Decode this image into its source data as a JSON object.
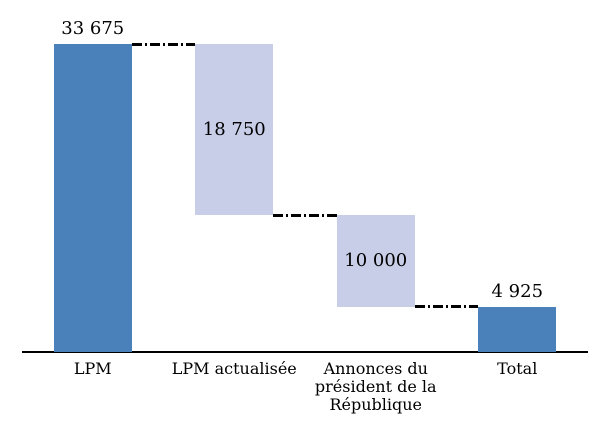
{
  "chart_data": {
    "type": "bar",
    "subtype": "waterfall",
    "title": "",
    "xlabel": "",
    "ylabel": "",
    "grid": false,
    "legend": false,
    "categories": [
      "LPM",
      "LPM actualisée",
      "Annonces du président de la République",
      "Total"
    ],
    "steps": [
      {
        "label": "LPM",
        "start": 0,
        "end": 33675,
        "display": "33 675",
        "style": "solid",
        "label_position": "above"
      },
      {
        "label": "LPM actualisée",
        "start": 33675,
        "end": 14925,
        "display": "18 750",
        "style": "light",
        "label_position": "inside"
      },
      {
        "label": "Annonces du président de la République",
        "start": 14925,
        "end": 4925,
        "display": "10 000",
        "style": "light",
        "label_position": "inside"
      },
      {
        "label": "Total",
        "start": 0,
        "end": 4925,
        "display": "4 925",
        "style": "solid",
        "label_position": "above"
      }
    ],
    "connectors": [
      {
        "level": 33675
      },
      {
        "level": 14925
      },
      {
        "level": 4925
      }
    ],
    "colors": {
      "solid_bar": "#4A81BA",
      "light_bar": "#C8CEE8",
      "connector": "#000000",
      "axis": "#000000",
      "text": "#000000"
    },
    "ylim": [
      0,
      33675
    ]
  }
}
